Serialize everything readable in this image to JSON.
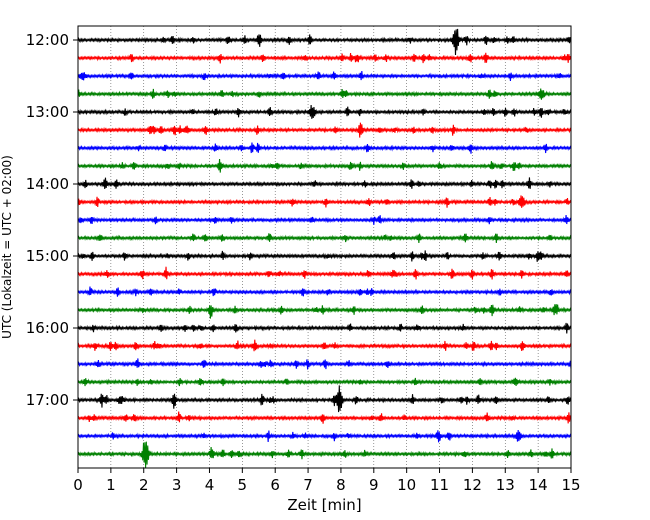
{
  "chart_data": {
    "type": "line",
    "title": "",
    "xlabel": "Zeit  [min]",
    "ylabel": "UTC (Lokalzeit = UTC + 02:00)",
    "xlim": [
      0,
      15
    ],
    "x_ticks": [
      "0",
      "1",
      "2",
      "3",
      "4",
      "5",
      "6",
      "7",
      "8",
      "9",
      "10",
      "11",
      "12",
      "13",
      "14",
      "15"
    ],
    "y_ticks": [
      "12:00",
      "13:00",
      "14:00",
      "15:00",
      "16:00",
      "17:00"
    ],
    "grid": "vertical dotted lines at each minute",
    "trace_interval_minutes": 15,
    "start_time": "12:00",
    "trace_count": 24,
    "colors_cycle": [
      "#000000",
      "#ff0000",
      "#0000ff",
      "#008000"
    ],
    "notable_events": [
      {
        "trace": 0,
        "x": 11.5,
        "amplitude": 1.6
      },
      {
        "trace": 2,
        "x": 0.15,
        "amplitude": 0.5
      },
      {
        "trace": 3,
        "x": 14.1,
        "amplitude": 0.6
      },
      {
        "trace": 5,
        "x": 3.3,
        "amplitude": 0.4
      },
      {
        "trace": 9,
        "x": 13.5,
        "amplitude": 0.8
      },
      {
        "trace": 20,
        "x": 7.95,
        "amplitude": 1.6
      },
      {
        "trace": 20,
        "x": 1.3,
        "amplitude": 0.5
      },
      {
        "trace": 22,
        "x": 13.4,
        "amplitude": 0.6
      },
      {
        "trace": 23,
        "x": 2.05,
        "amplitude": 1.8
      }
    ]
  }
}
